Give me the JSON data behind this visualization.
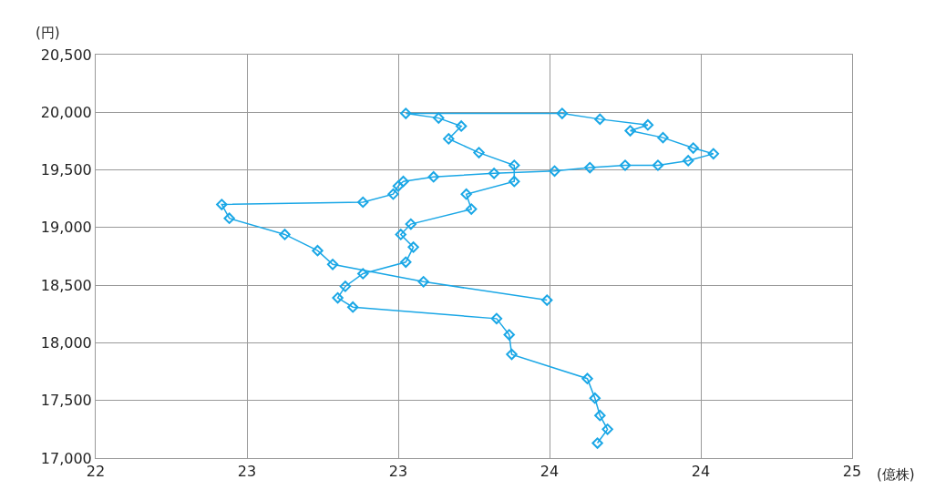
{
  "chart_data": {
    "type": "line",
    "xlabel": "(億株)",
    "ylabel": "(円)",
    "x": [
      23.99,
      24.03,
      24.0,
      23.98,
      23.95,
      23.65,
      23.64,
      23.59,
      23.02,
      22.96,
      22.99,
      23.06,
      23.23,
      23.26,
      23.21,
      23.25,
      23.49,
      23.47,
      23.66,
      23.66,
      23.52,
      23.4,
      23.45,
      23.36,
      23.23,
      23.85,
      24.0,
      24.19,
      24.12,
      24.25,
      24.37,
      24.45,
      24.35,
      24.23,
      24.1,
      23.96,
      23.82,
      23.58,
      23.34,
      23.22,
      23.2,
      23.18,
      23.06,
      22.5,
      22.53,
      22.75,
      22.88,
      22.94,
      23.3,
      23.79
    ],
    "series": [
      {
        "color": "#1aa7e6",
        "values": [
          17130,
          17250,
          17370,
          17520,
          17690,
          17900,
          18070,
          18210,
          18310,
          18390,
          18490,
          18600,
          18700,
          18830,
          18940,
          19030,
          19160,
          19290,
          19400,
          19540,
          19650,
          19770,
          19880,
          19950,
          19990,
          19990,
          19940,
          19890,
          19840,
          19780,
          19690,
          19640,
          19580,
          19540,
          19540,
          19520,
          19490,
          19470,
          19440,
          19400,
          19360,
          19290,
          19220,
          19200,
          19080,
          18940,
          18800,
          18680,
          18530,
          18370
        ]
      }
    ],
    "xlim": [
      22,
      25
    ],
    "xticks": [
      22,
      {
        "value": 22.6,
        "label": "23"
      },
      {
        "value": 23.2,
        "label": "23"
      },
      {
        "value": 23.8,
        "label": "24"
      },
      {
        "value": 24.4,
        "label": "24"
      },
      25
    ],
    "ylim": [
      17000,
      20500
    ],
    "yticks": [
      {
        "value": 17000,
        "label": "17,000"
      },
      {
        "value": 17500,
        "label": "17,500"
      },
      {
        "value": 18000,
        "label": "18,000"
      },
      {
        "value": 18500,
        "label": "18,500"
      },
      {
        "value": 19000,
        "label": "19,000"
      },
      {
        "value": 19500,
        "label": "19,500"
      },
      {
        "value": 20000,
        "label": "20,000"
      },
      {
        "value": 20500,
        "label": "20,500"
      }
    ],
    "grid": true,
    "marker": "diamond",
    "line_style": "solid"
  }
}
